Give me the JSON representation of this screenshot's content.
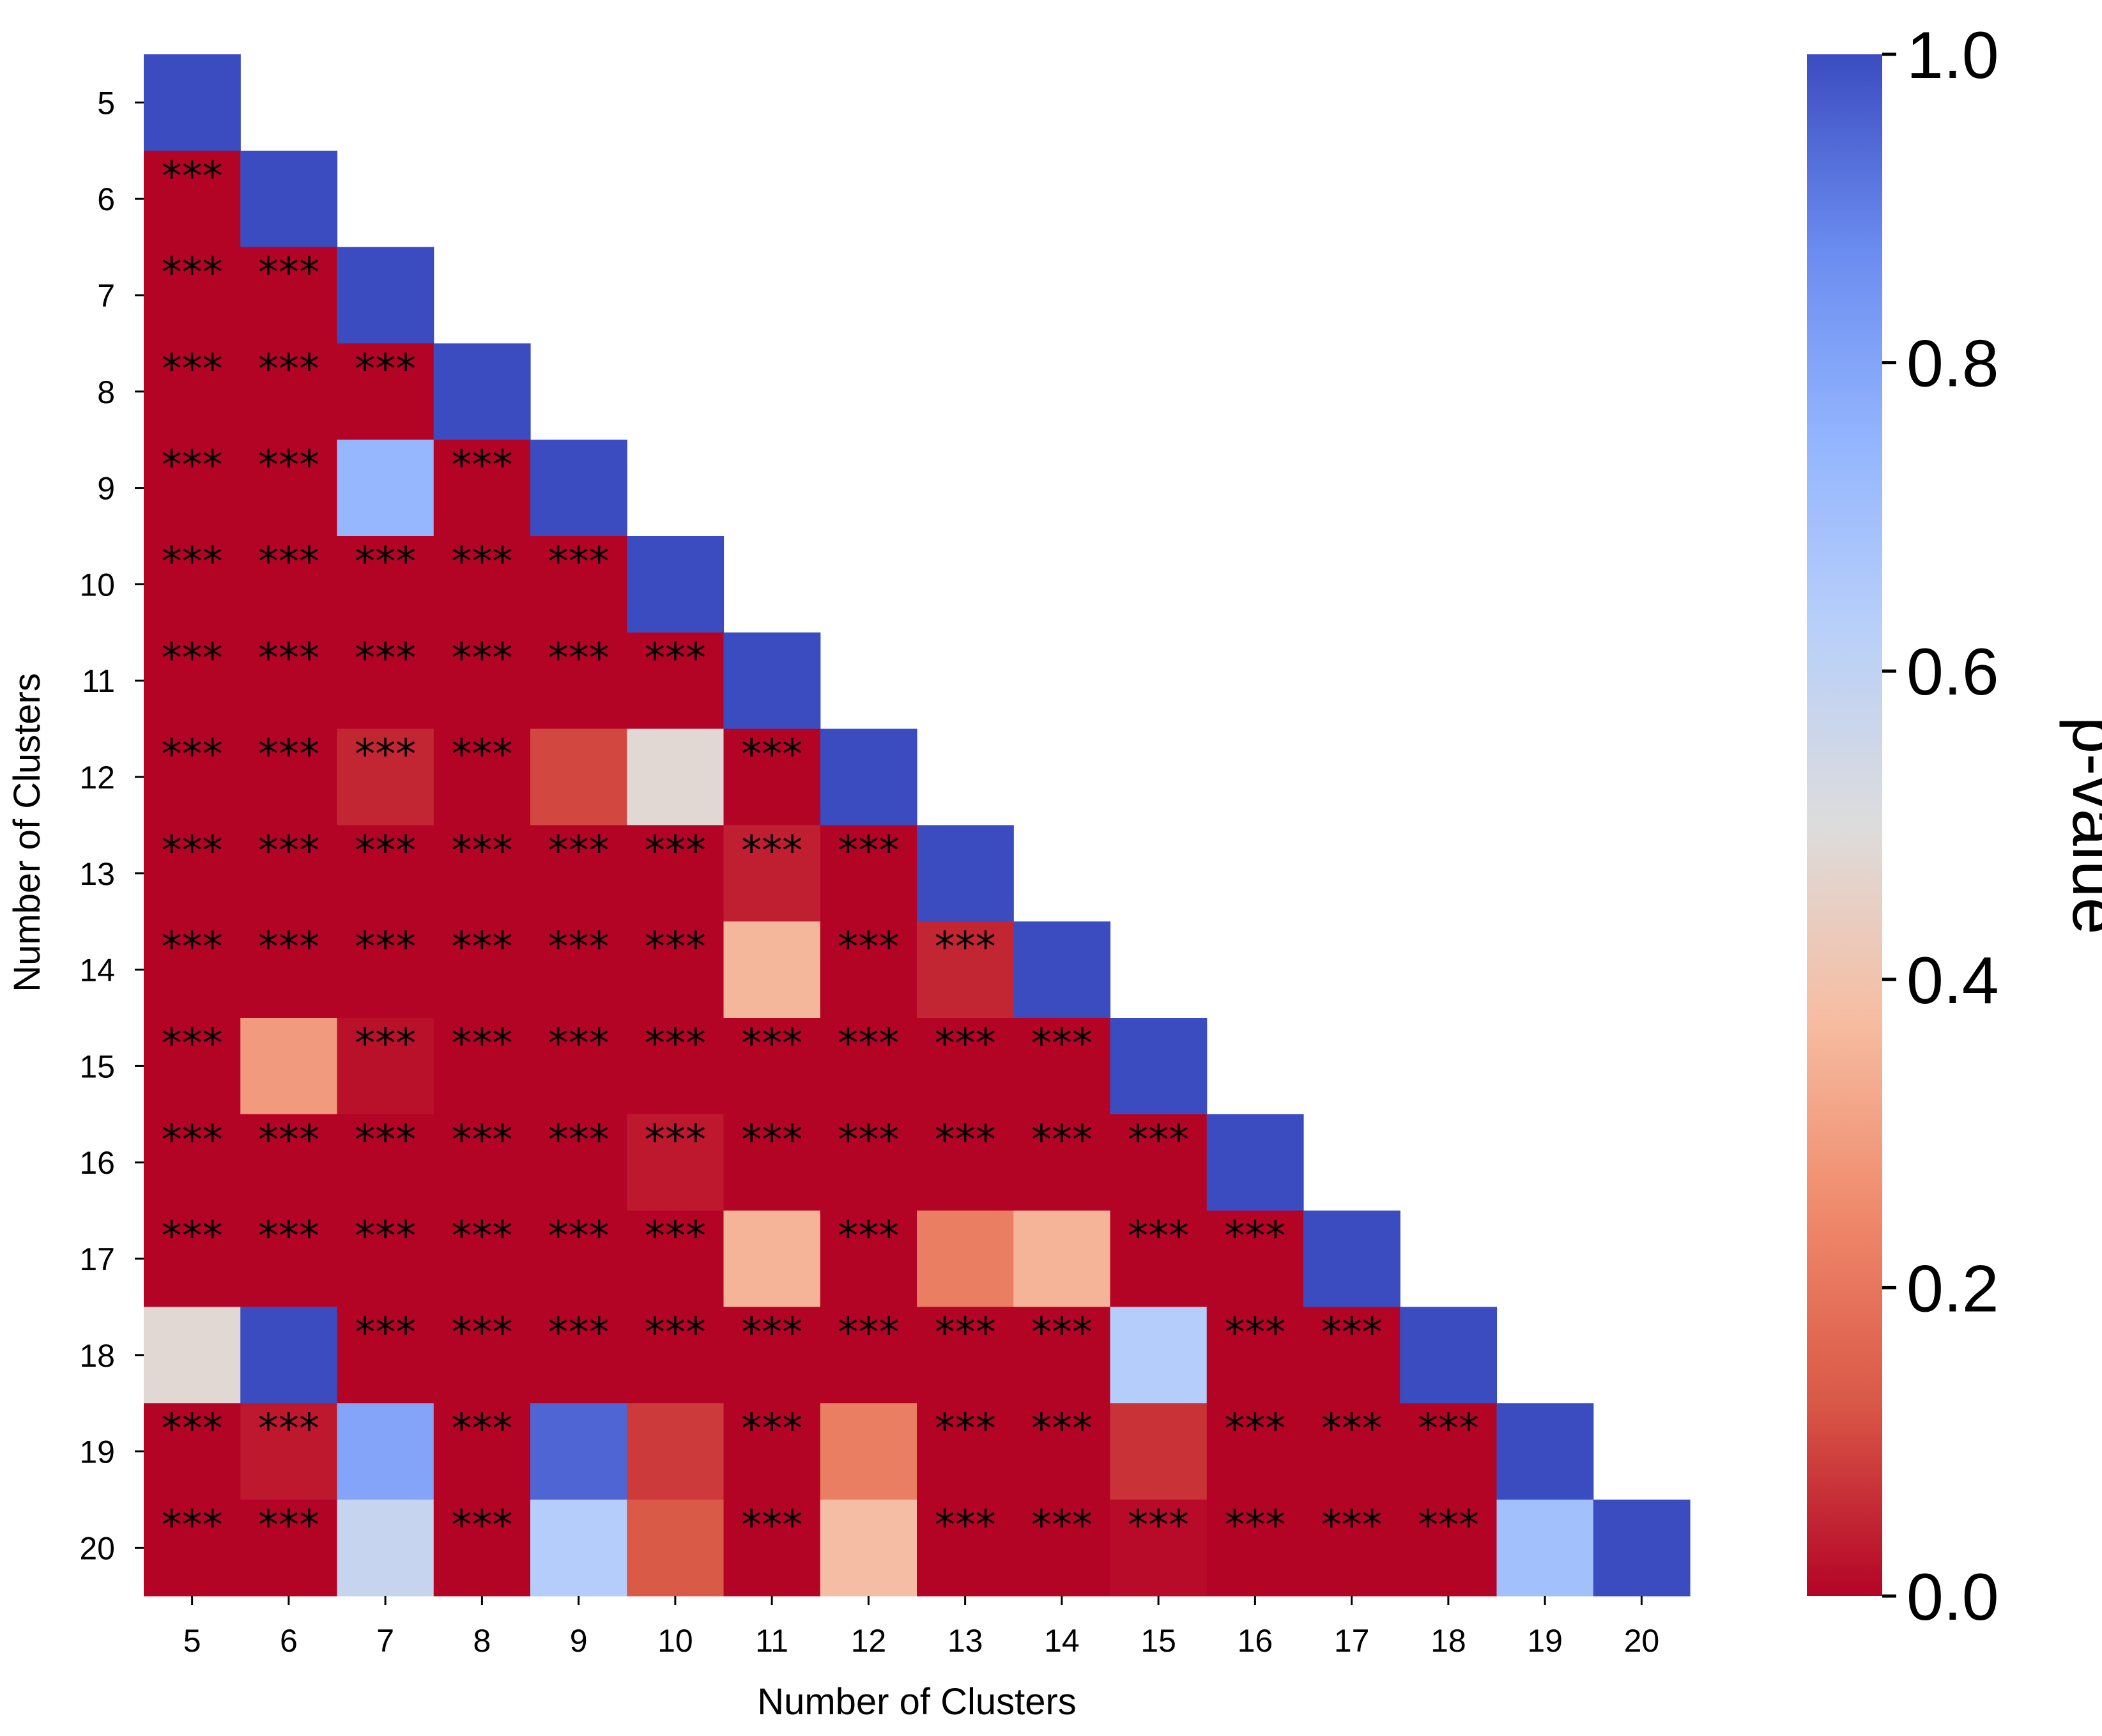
{
  "chart_data": {
    "type": "heatmap",
    "xlabel": "Number of Clusters",
    "ylabel": "Number of Clusters",
    "x_categories": [
      "5",
      "6",
      "7",
      "8",
      "9",
      "10",
      "11",
      "12",
      "13",
      "14",
      "15",
      "16",
      "17",
      "18",
      "19",
      "20"
    ],
    "y_categories": [
      "5",
      "6",
      "7",
      "8",
      "9",
      "10",
      "11",
      "12",
      "13",
      "14",
      "15",
      "16",
      "17",
      "18",
      "19",
      "20"
    ],
    "mask": "upper triangle hidden",
    "values": [
      [
        1.0
      ],
      [
        0.0,
        1.0
      ],
      [
        0.0,
        0.0,
        1.0
      ],
      [
        0.0,
        0.0,
        0.0,
        1.0
      ],
      [
        0.0,
        0.0,
        0.74,
        0.0,
        1.0
      ],
      [
        0.0,
        0.0,
        0.0,
        0.0,
        0.0,
        1.0
      ],
      [
        0.0,
        0.0,
        0.0,
        0.0,
        0.0,
        0.0,
        1.0
      ],
      [
        0.0,
        0.0,
        0.05,
        0.0,
        0.1,
        0.48,
        0.0,
        1.0
      ],
      [
        0.0,
        0.0,
        0.0,
        0.0,
        0.0,
        0.0,
        0.04,
        0.0,
        1.0
      ],
      [
        0.0,
        0.0,
        0.0,
        0.0,
        0.0,
        0.0,
        0.36,
        0.0,
        0.05,
        1.0
      ],
      [
        0.0,
        0.29,
        0.02,
        0.0,
        0.0,
        0.0,
        0.0,
        0.0,
        0.0,
        0.0,
        1.0
      ],
      [
        0.0,
        0.0,
        0.0,
        0.0,
        0.0,
        0.03,
        0.0,
        0.0,
        0.0,
        0.0,
        0.0,
        1.0
      ],
      [
        0.0,
        0.0,
        0.0,
        0.0,
        0.0,
        0.0,
        0.35,
        0.0,
        0.22,
        0.35,
        0.0,
        0.0,
        1.0
      ],
      [
        0.48,
        1.0,
        0.0,
        0.0,
        0.0,
        0.0,
        0.0,
        0.0,
        0.0,
        0.0,
        0.64,
        0.0,
        0.0,
        1.0
      ],
      [
        0.0,
        0.03,
        0.8,
        0.0,
        0.95,
        0.08,
        0.0,
        0.22,
        0.0,
        0.0,
        0.07,
        0.0,
        0.0,
        0.0,
        1.0
      ],
      [
        0.0,
        0.0,
        0.58,
        0.0,
        0.64,
        0.13,
        0.0,
        0.38,
        0.0,
        0.0,
        0.01,
        0.0,
        0.0,
        0.0,
        0.7,
        1.0
      ]
    ],
    "annotations": [
      [
        ""
      ],
      [
        "***",
        ""
      ],
      [
        "***",
        "***",
        ""
      ],
      [
        "***",
        "***",
        "***",
        ""
      ],
      [
        "***",
        "***",
        "",
        "***",
        ""
      ],
      [
        "***",
        "***",
        "***",
        "***",
        "***",
        ""
      ],
      [
        "***",
        "***",
        "***",
        "***",
        "***",
        "***",
        ""
      ],
      [
        "***",
        "***",
        "***",
        "***",
        "",
        "",
        "***",
        ""
      ],
      [
        "***",
        "***",
        "***",
        "***",
        "***",
        "***",
        "***",
        "***",
        ""
      ],
      [
        "***",
        "***",
        "***",
        "***",
        "***",
        "***",
        "",
        "***",
        "***",
        ""
      ],
      [
        "***",
        "",
        "***",
        "***",
        "***",
        "***",
        "***",
        "***",
        "***",
        "***",
        ""
      ],
      [
        "***",
        "***",
        "***",
        "***",
        "***",
        "***",
        "***",
        "***",
        "***",
        "***",
        "***",
        ""
      ],
      [
        "***",
        "***",
        "***",
        "***",
        "***",
        "***",
        "",
        "***",
        "",
        "",
        "***",
        "***",
        ""
      ],
      [
        "",
        "",
        "***",
        "***",
        "***",
        "***",
        "***",
        "***",
        "***",
        "***",
        "",
        "***",
        "***",
        ""
      ],
      [
        "***",
        "***",
        "",
        "***",
        "",
        "",
        "***",
        "",
        "***",
        "***",
        "",
        "***",
        "***",
        "***",
        ""
      ],
      [
        "***",
        "***",
        "",
        "***",
        "",
        "",
        "***",
        "",
        "***",
        "***",
        "***",
        "***",
        "***",
        "***",
        "",
        ""
      ]
    ],
    "colorbar": {
      "label": "p-value",
      "colormap": "coolwarm_r",
      "range": [
        0.0,
        1.0
      ],
      "ticks": [
        "0.0",
        "0.2",
        "0.4",
        "0.6",
        "0.8",
        "1.0"
      ]
    }
  }
}
